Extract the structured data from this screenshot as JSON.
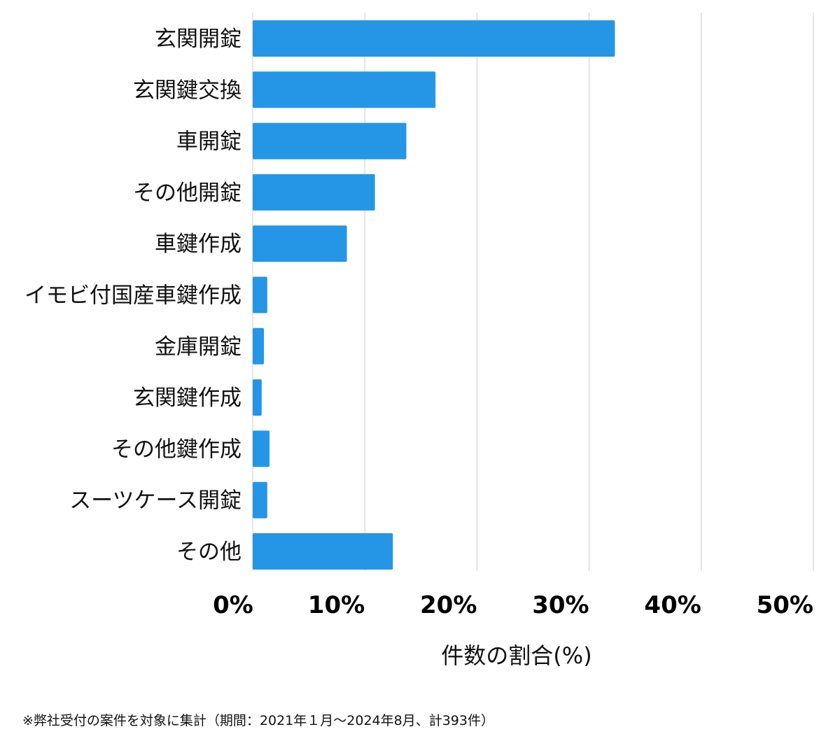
{
  "chart_data": {
    "type": "bar",
    "orientation": "horizontal",
    "categories": [
      "玄関開錠",
      "玄関鍵交換",
      "車開錠",
      "その他開錠",
      "車鍵作成",
      "イモビ付国産車鍵作成",
      "金庫開錠",
      "玄関鍵作成",
      "その他鍵作成",
      "スーツケース開錠",
      "その他"
    ],
    "values": [
      32.3,
      16.3,
      13.7,
      10.9,
      8.4,
      1.3,
      1.0,
      0.8,
      1.5,
      1.3,
      12.5
    ],
    "xlim": [
      0,
      50
    ],
    "xticks": [
      0,
      10,
      20,
      30,
      40,
      50
    ],
    "xtick_labels": [
      "0%",
      "10%",
      "20%",
      "30%",
      "40%",
      "50%"
    ],
    "xlabel": "件数の割合(%)",
    "ylabel": "",
    "grid": true,
    "bar_color": "#2596e6",
    "grid_color": "#cccccc"
  },
  "footnote": "※弊社受付の案件を対象に集計（期間：2021年１月〜2024年8月、計393件）"
}
